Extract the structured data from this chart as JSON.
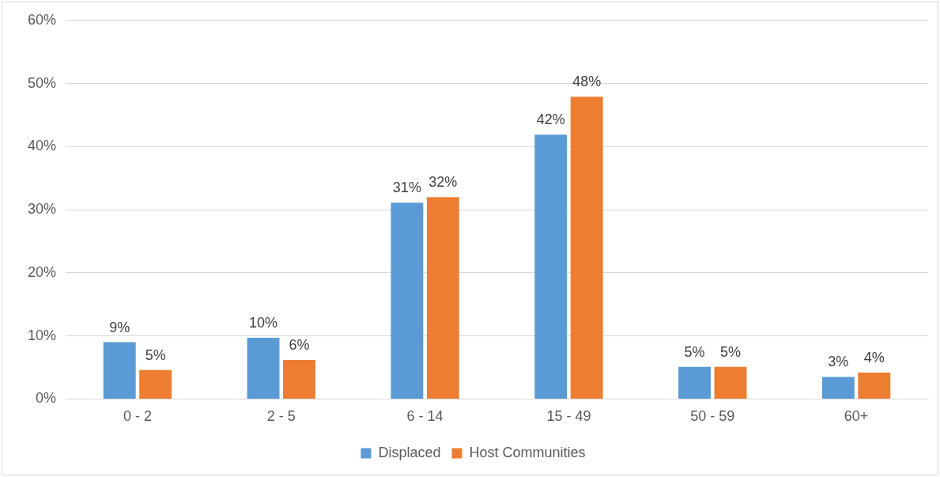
{
  "chart_data": {
    "type": "bar",
    "categories": [
      "0 - 2",
      "2 - 5",
      "6 - 14",
      "15 - 49",
      "50 - 59",
      "60+"
    ],
    "series": [
      {
        "name": "Displaced",
        "color": "#5b9bd5",
        "values": [
          9.0,
          9.7,
          31.1,
          41.9,
          5.1,
          3.5
        ],
        "value_labels": [
          "9%",
          "10%",
          "31%",
          "42%",
          "5%",
          "3%"
        ]
      },
      {
        "name": "Host Communities",
        "color": "#ed7d31",
        "values": [
          4.6,
          6.2,
          32.0,
          47.9,
          5.1,
          4.2
        ],
        "value_labels": [
          "5%",
          "6%",
          "32%",
          "48%",
          "5%",
          "4%"
        ]
      }
    ],
    "ylim": [
      0,
      60
    ],
    "yticks": [
      {
        "value": 0,
        "label": "0%"
      },
      {
        "value": 10,
        "label": "10%"
      },
      {
        "value": 20,
        "label": "20%"
      },
      {
        "value": 30,
        "label": "30%"
      },
      {
        "value": 40,
        "label": "40%"
      },
      {
        "value": 50,
        "label": "50%"
      },
      {
        "value": 60,
        "label": "60%"
      }
    ],
    "grid": "y",
    "legend": "bottom"
  }
}
